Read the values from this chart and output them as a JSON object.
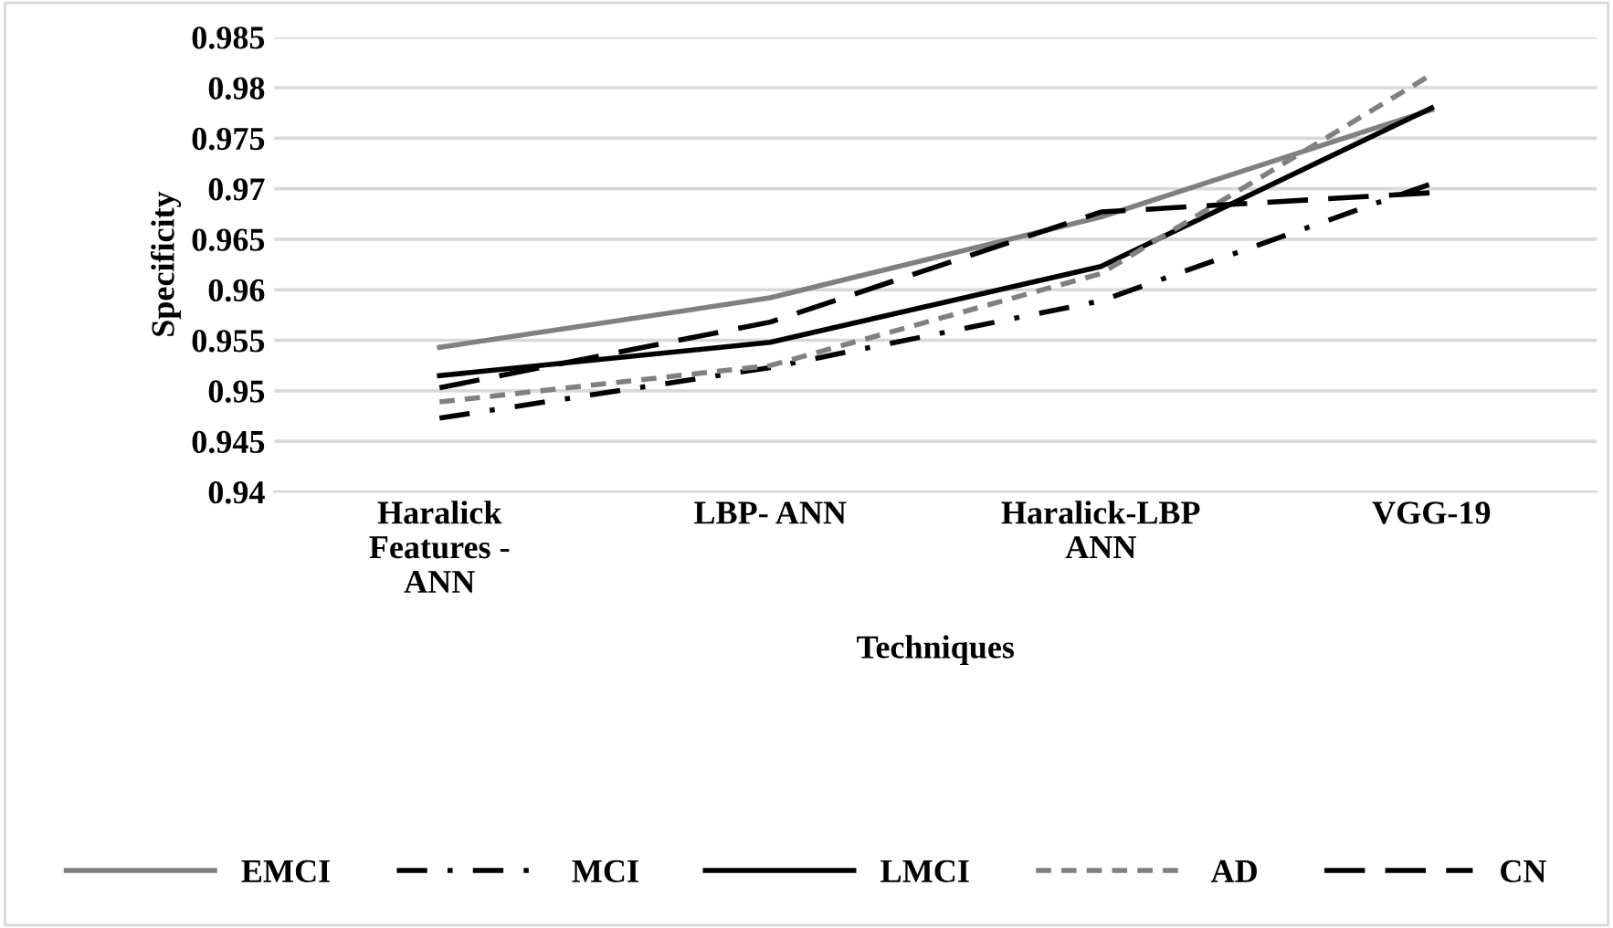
{
  "chart_data": {
    "type": "line",
    "xlabel": "Techniques",
    "ylabel": "Specificity",
    "categories": [
      "Haralick\nFeatures -\nANN",
      "LBP- ANN",
      "Haralick-LBP\nANN",
      "VGG-19"
    ],
    "ylim": [
      0.94,
      0.985
    ],
    "yticks": [
      0.94,
      0.945,
      0.95,
      0.955,
      0.96,
      0.965,
      0.97,
      0.975,
      0.98,
      0.985
    ],
    "grid": "y",
    "legend": "bottom",
    "marker": "none",
    "series": [
      {
        "name": "EMCI",
        "color": "#808080",
        "line_style": "solid",
        "values": [
          0.9543,
          0.9592,
          0.9672,
          0.9778
        ]
      },
      {
        "name": "MCI",
        "color": "#000000",
        "line_style": "dashdot",
        "values": [
          0.9473,
          0.9523,
          0.9589,
          0.9705
        ]
      },
      {
        "name": "LMCI",
        "color": "#000000",
        "line_style": "solid",
        "values": [
          0.9515,
          0.9548,
          0.9623,
          0.978
        ]
      },
      {
        "name": "AD",
        "color": "#808080",
        "line_style": "dotted",
        "values": [
          0.9489,
          0.9525,
          0.9616,
          0.9813
        ]
      },
      {
        "name": "CN",
        "color": "#000000",
        "line_style": "dashed",
        "values": [
          0.9503,
          0.9568,
          0.9677,
          0.9696
        ]
      }
    ]
  }
}
